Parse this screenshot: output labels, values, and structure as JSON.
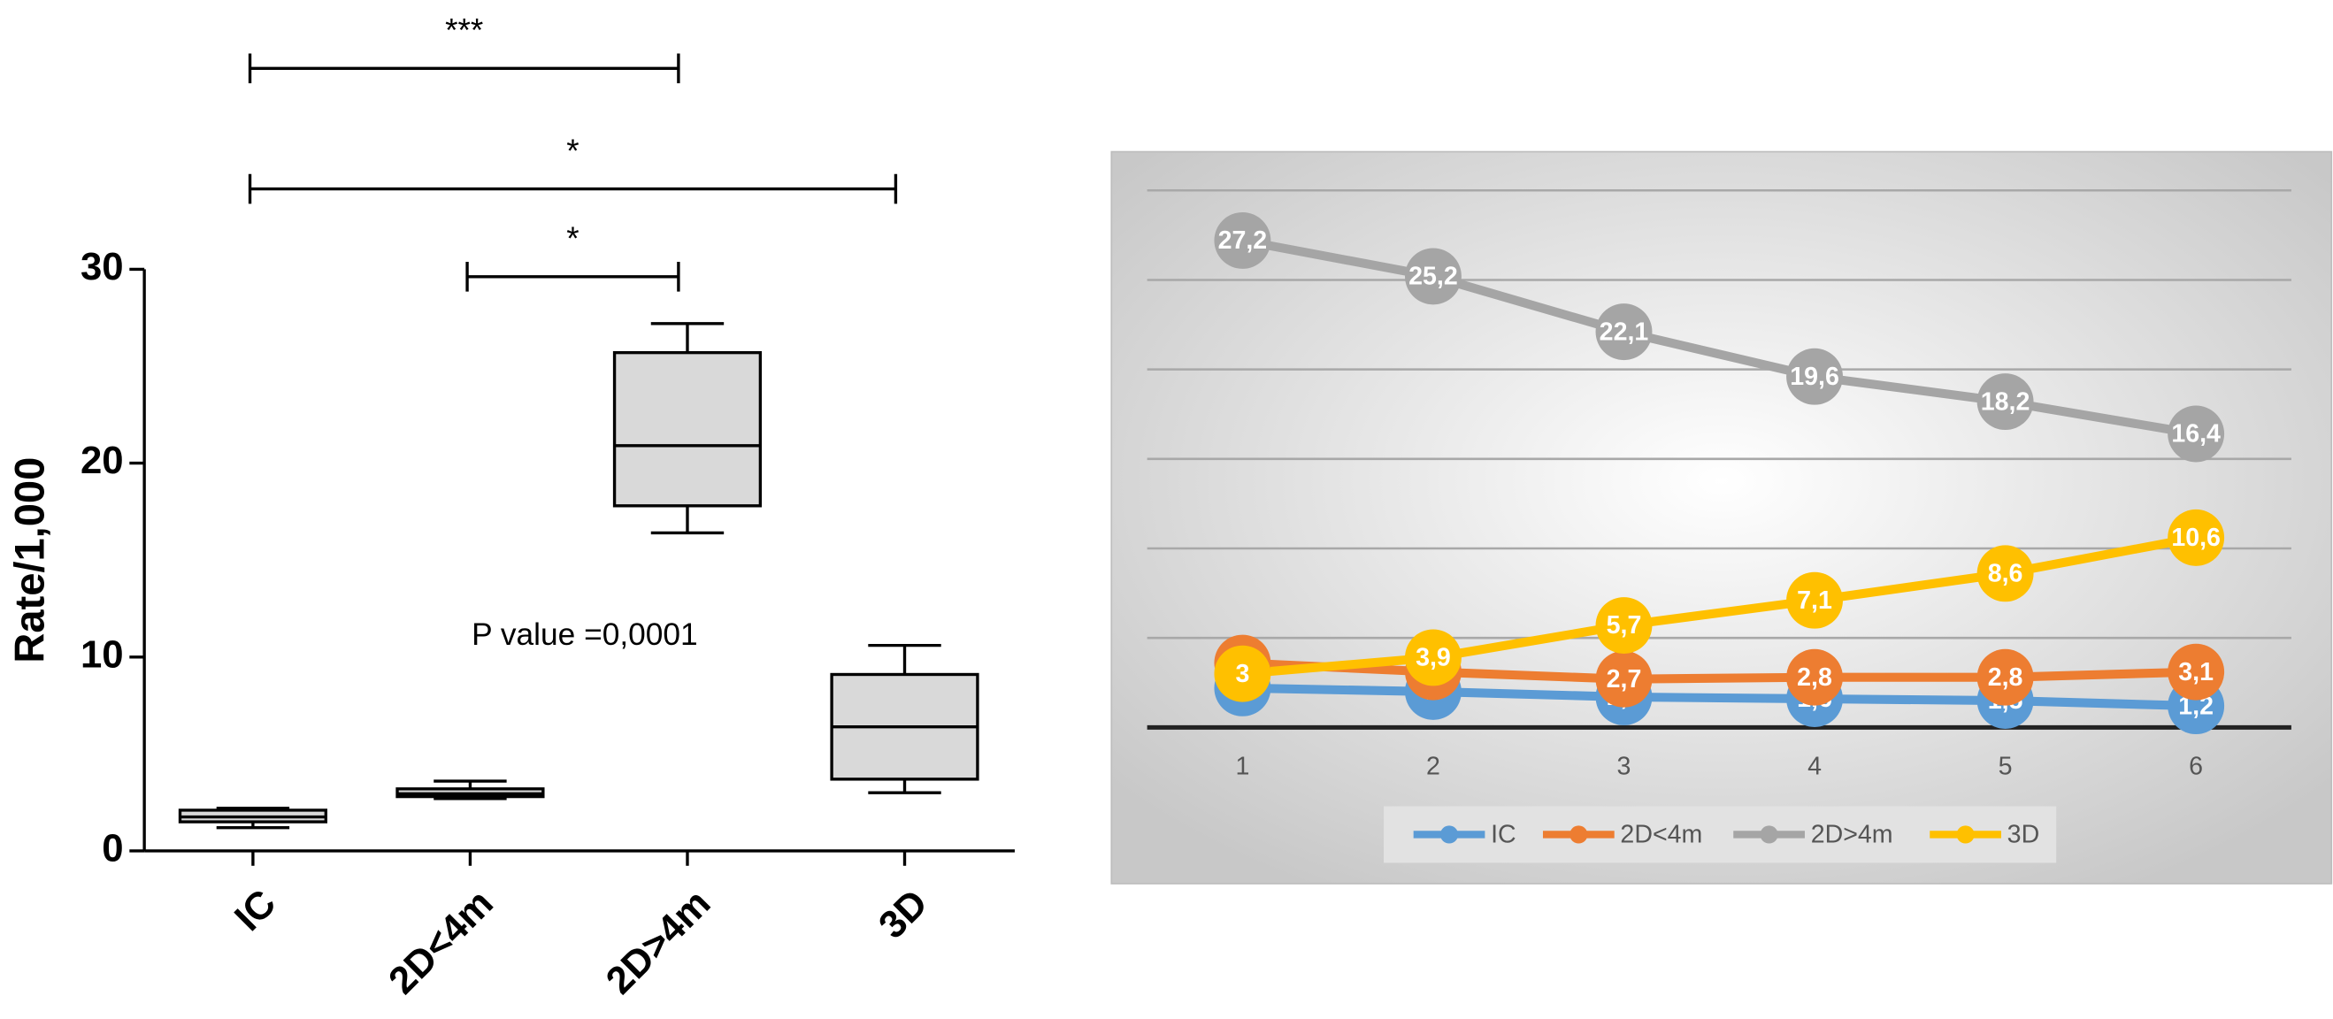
{
  "chart_data": [
    {
      "type": "box",
      "y_label": "Rate/1,000",
      "categories": [
        "IC",
        "2D<4m",
        "2D>4m",
        "3D"
      ],
      "boxes": [
        {
          "min": 1.2,
          "q1": 1.5,
          "median": 1.75,
          "q3": 2.1,
          "max": 2.2
        },
        {
          "min": 2.7,
          "q1": 2.8,
          "median": 2.95,
          "q3": 3.2,
          "max": 3.6
        },
        {
          "min": 16.4,
          "q1": 17.8,
          "median": 20.9,
          "q3": 25.7,
          "max": 27.2
        },
        {
          "min": 3,
          "q1": 3.7,
          "median": 6.4,
          "q3": 9.1,
          "max": 10.6
        }
      ],
      "color": "#d9d9d9",
      "ylim": [
        0,
        30
      ],
      "yticks": [
        0,
        10,
        20,
        30
      ],
      "comparisons": [
        {
          "label": "***",
          "groups": [
            0,
            2
          ]
        },
        {
          "label": "*",
          "groups": [
            0,
            3
          ]
        },
        {
          "label": "*",
          "groups": [
            1,
            2
          ]
        }
      ],
      "annotation": "P value =0,0001"
    },
    {
      "type": "line",
      "categories": [
        "1",
        "2",
        "3",
        "4",
        "5",
        "6"
      ],
      "series": [
        {
          "name": "IC",
          "color": "#5b9bd5",
          "values": [
            2.2,
            2,
            1.7,
            1.6,
            1.5,
            1.2
          ],
          "value_labels": [
            "2,2",
            "2",
            "1,7",
            "1,6",
            "1,5",
            "1,2"
          ]
        },
        {
          "name": "2D<4m",
          "color": "#ed7d31",
          "values": [
            3.6,
            3.1,
            2.7,
            2.8,
            2.8,
            3.1
          ],
          "value_labels": [
            "3,6",
            "3,1",
            "2,7",
            "2,8",
            "2,8",
            "3,1"
          ]
        },
        {
          "name": "2D>4m",
          "color": "#a5a5a5",
          "values": [
            27.2,
            25.2,
            22.1,
            19.6,
            18.2,
            16.4
          ],
          "value_labels": [
            "27,2",
            "25,2",
            "22,1",
            "19,6",
            "18,2",
            "16,4"
          ]
        },
        {
          "name": "3D",
          "color": "#ffc000",
          "values": [
            3,
            3.9,
            5.7,
            7.1,
            8.6,
            10.6
          ],
          "value_labels": [
            "3",
            "3,9",
            "5,7",
            "7,1",
            "8,6",
            "10,6"
          ]
        }
      ],
      "ylim": [
        0,
        30
      ],
      "yticks": [
        0,
        5,
        10,
        15,
        20,
        25,
        30
      ],
      "show_tick_labels": false,
      "grid": true,
      "legend": "bottom"
    }
  ]
}
